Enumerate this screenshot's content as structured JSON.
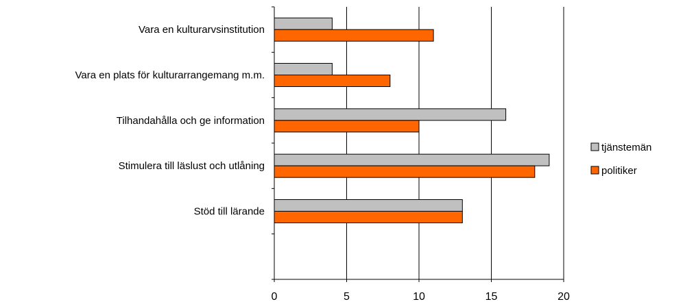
{
  "chart_data": {
    "type": "bar",
    "orientation": "horizontal",
    "title": "",
    "xlabel": "",
    "ylabel": "",
    "categories": [
      "Vara en kulturarvsinstitution",
      "Vara en plats för kulturarrangemang m.m.",
      "Tilhandahålla och ge information",
      "Stimulera till läslust och utlåning",
      "Stöd till lärande"
    ],
    "series": [
      {
        "name": "tjänstemän",
        "color": "#c0c0c0",
        "values": [
          4,
          4,
          16,
          19,
          13
        ]
      },
      {
        "name": "politiker",
        "color": "#ff6600",
        "values": [
          11,
          8,
          10,
          18,
          13
        ]
      }
    ],
    "xlim": [
      0,
      20
    ],
    "xticks": [
      "0",
      "5",
      "10",
      "15",
      "20"
    ],
    "grid": "vertical",
    "legend_position": "right"
  }
}
